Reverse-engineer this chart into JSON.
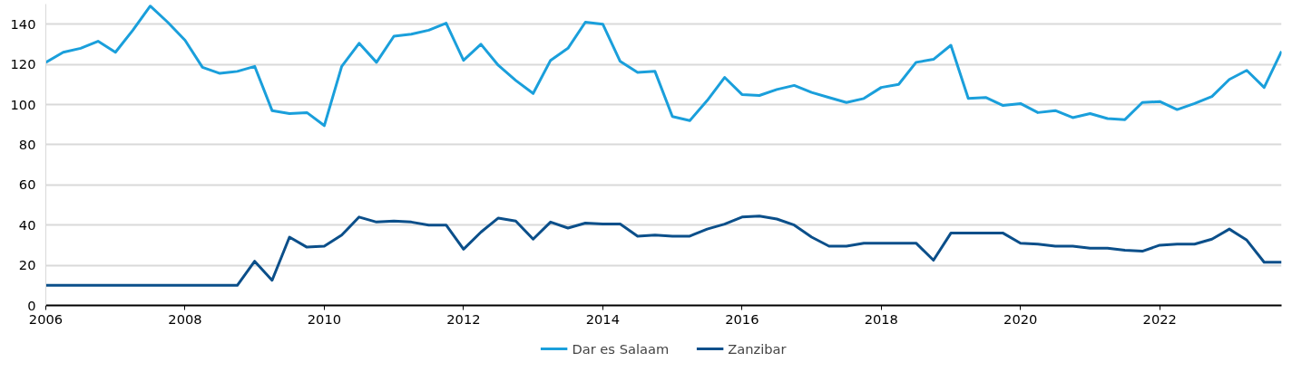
{
  "chart_data": {
    "type": "line",
    "x": [
      2006,
      2006.25,
      2006.5,
      2006.75,
      2007,
      2007.25,
      2007.5,
      2007.75,
      2008,
      2008.25,
      2008.5,
      2008.75,
      2009,
      2009.25,
      2009.5,
      2009.75,
      2010,
      2010.25,
      2010.5,
      2010.75,
      2011,
      2011.25,
      2011.5,
      2011.75,
      2012,
      2012.25,
      2012.5,
      2012.75,
      2013,
      2013.25,
      2013.5,
      2013.75,
      2014,
      2014.25,
      2014.5,
      2014.75,
      2015,
      2015.25,
      2015.5,
      2015.75,
      2016,
      2016.25,
      2016.5,
      2016.75,
      2017,
      2017.25,
      2017.5,
      2017.75,
      2018,
      2018.25,
      2018.5,
      2018.75,
      2019,
      2019.25,
      2019.5,
      2019.75,
      2020,
      2020.25,
      2020.5,
      2020.75,
      2021,
      2021.25,
      2021.5,
      2021.75,
      2022,
      2022.25,
      2022.5,
      2022.75,
      2023,
      2023.25,
      2023.5,
      2023.75
    ],
    "series": [
      {
        "name": "Dar es Salaam",
        "color": "#1a9fdb",
        "values": [
          121,
          126,
          128,
          131.5,
          126,
          137,
          149,
          141,
          132,
          118.5,
          115.5,
          116.5,
          119,
          97,
          95.5,
          96,
          89.5,
          119,
          130.5,
          121,
          134,
          135,
          137,
          140.5,
          122,
          130,
          119.5,
          112,
          105.5,
          122,
          128,
          141,
          140,
          121.5,
          116,
          116.5,
          94,
          92,
          102,
          113.5,
          105,
          104.5,
          107.5,
          109.5,
          106,
          103.5,
          101,
          103,
          108.5,
          110,
          121,
          122.5,
          129.5,
          103,
          103.5,
          99.5,
          100.5,
          96,
          97,
          93.5,
          95.5,
          93,
          92.5,
          101,
          101.5,
          97.5,
          100.5,
          104,
          112.5,
          117,
          108.5,
          126.5
        ]
      },
      {
        "name": "Zanzibar",
        "color": "#0b4f8a",
        "values": [
          10,
          10,
          10,
          10,
          10,
          10,
          10,
          10,
          10,
          10,
          10,
          10,
          22,
          12.5,
          34,
          29,
          29.5,
          35,
          44,
          41.5,
          42,
          41.5,
          40,
          40,
          28,
          36.5,
          43.5,
          42,
          33,
          41.5,
          38.5,
          41,
          40.5,
          40.5,
          34.5,
          35,
          34.5,
          34.5,
          38,
          40.5,
          44,
          44.5,
          43,
          40,
          34,
          29.5,
          29.5,
          31,
          31,
          31,
          31,
          22.5,
          36,
          36,
          36,
          36,
          31,
          30.5,
          29.5,
          29.5,
          28.5,
          28.5,
          27.5,
          27,
          30,
          30.5,
          30.5,
          33,
          38,
          32.5,
          21.5,
          21.5
        ]
      }
    ],
    "xlim": [
      2006,
      2023.75
    ],
    "xticks": [
      2006,
      2008,
      2010,
      2012,
      2014,
      2016,
      2018,
      2020,
      2022
    ],
    "ylim": [
      0,
      150
    ],
    "yticks": [
      0,
      20,
      40,
      60,
      80,
      100,
      120,
      140
    ],
    "grid": "y",
    "legend": "bottom"
  }
}
